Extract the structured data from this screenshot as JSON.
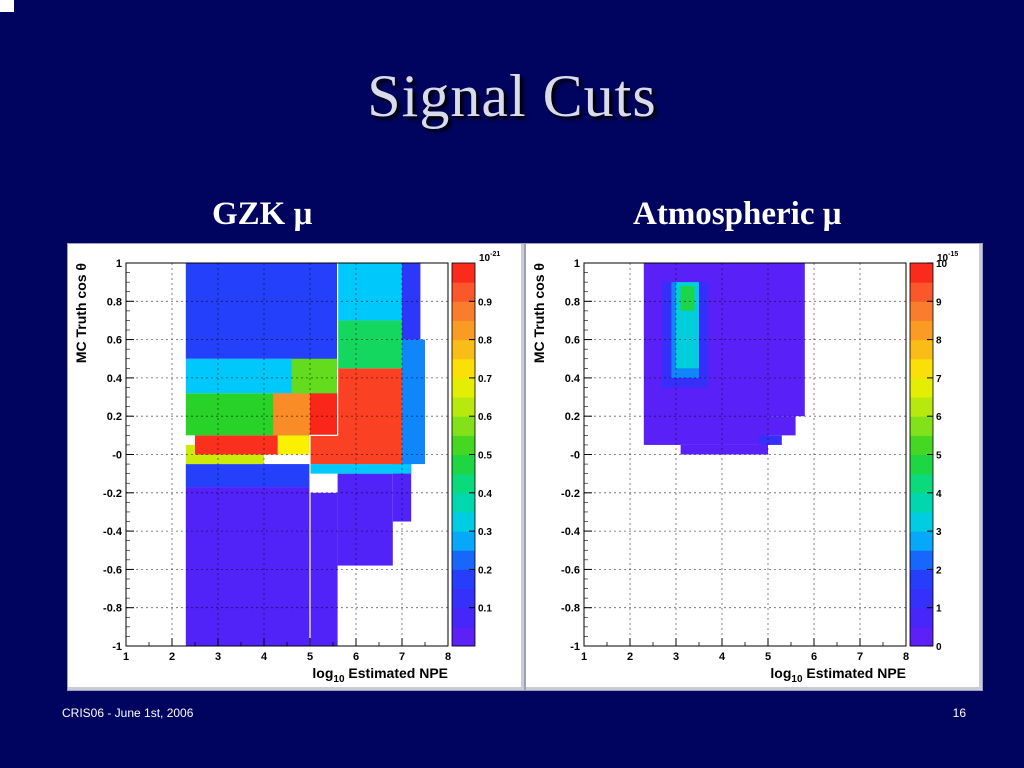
{
  "slide": {
    "title": "Signal Cuts",
    "footer_left": "CRIS06 - June 1st, 2006",
    "footer_right": "16"
  },
  "panels": {
    "left_label": "GZK  μ",
    "right_label": "Atmospheric  μ"
  },
  "chart_data": [
    {
      "type": "heatmap",
      "title": "",
      "xlabel": "log10 Estimated NPE",
      "ylabel": "MC Truth cos θ",
      "xlim": [
        1,
        8
      ],
      "ylim": [
        -1,
        1
      ],
      "x_ticks": [
        "1",
        "2",
        "3",
        "4",
        "5",
        "6",
        "7",
        "8"
      ],
      "y_ticks": [
        "-1",
        "-0.8",
        "-0.6",
        "-0.4",
        "-0.2",
        "-0",
        "0.2",
        "0.4",
        "0.6",
        "0.8",
        "1"
      ],
      "colorbar": {
        "min": 0,
        "max": 1,
        "exponent_label": "10-21",
        "tick_values": [
          0.1,
          0.2,
          0.3,
          0.4,
          0.5,
          0.6,
          0.7,
          0.8,
          0.9
        ],
        "tick_labels": [
          "0.1",
          "0.2",
          "0.3",
          "0.4",
          "0.5",
          "0.6",
          "0.7",
          "0.8",
          "0.9"
        ]
      },
      "cut_lines": [
        {
          "x": [
            5,
            5,
            5.6,
            5.6
          ],
          "y": [
            -1,
            0.1,
            0.1,
            1
          ],
          "color": "#ffffff"
        }
      ],
      "blocks": [
        {
          "x": [
            2.3,
            5.0
          ],
          "y": [
            -1.0,
            -0.17
          ],
          "v": 0.05
        },
        {
          "x": [
            5.0,
            5.6
          ],
          "y": [
            -1.0,
            -0.2
          ],
          "v": 0.05
        },
        {
          "x": [
            5.6,
            6.8
          ],
          "y": [
            -0.58,
            -0.1
          ],
          "v": 0.05
        },
        {
          "x": [
            6.8,
            7.2
          ],
          "y": [
            -0.35,
            -0.05
          ],
          "v": 0.05
        },
        {
          "x": [
            2.3,
            5.0
          ],
          "y": [
            -0.17,
            -0.05
          ],
          "v": 0.18
        },
        {
          "x": [
            5.0,
            7.2
          ],
          "y": [
            -0.1,
            -0.05
          ],
          "v": 0.3
        },
        {
          "x": [
            2.3,
            4.0
          ],
          "y": [
            -0.05,
            0.05
          ],
          "v": 0.65
        },
        {
          "x": [
            2.5,
            4.3
          ],
          "y": [
            0.0,
            0.1
          ],
          "v": 0.97
        },
        {
          "x": [
            4.3,
            5.0
          ],
          "y": [
            0.0,
            0.1
          ],
          "v": 0.7
        },
        {
          "x": [
            5.0,
            7.0
          ],
          "y": [
            -0.05,
            0.45
          ],
          "v": 0.95
        },
        {
          "x": [
            2.3,
            5.0
          ],
          "y": [
            0.1,
            0.32
          ],
          "v": 0.5
        },
        {
          "x": [
            4.2,
            5.0
          ],
          "y": [
            0.1,
            0.32
          ],
          "v": 0.85
        },
        {
          "x": [
            5.0,
            5.6
          ],
          "y": [
            0.1,
            0.4
          ],
          "v": 0.98
        },
        {
          "x": [
            2.3,
            5.6
          ],
          "y": [
            0.32,
            0.5
          ],
          "v": 0.3
        },
        {
          "x": [
            4.6,
            5.6
          ],
          "y": [
            0.32,
            0.55
          ],
          "v": 0.55
        },
        {
          "x": [
            2.3,
            5.6
          ],
          "y": [
            0.5,
            1.0
          ],
          "v": 0.18
        },
        {
          "x": [
            5.6,
            7.0
          ],
          "y": [
            0.45,
            0.7
          ],
          "v": 0.45
        },
        {
          "x": [
            5.6,
            7.0
          ],
          "y": [
            0.7,
            1.0
          ],
          "v": 0.3
        },
        {
          "x": [
            7.0,
            7.5
          ],
          "y": [
            -0.05,
            0.6
          ],
          "v": 0.25
        },
        {
          "x": [
            7.0,
            7.4
          ],
          "y": [
            0.6,
            1.0
          ],
          "v": 0.15
        }
      ]
    },
    {
      "type": "heatmap",
      "title": "",
      "xlabel": "log10 Estimated NPE",
      "ylabel": "MC Truth cos θ",
      "xlim": [
        1,
        8
      ],
      "ylim": [
        -1,
        1
      ],
      "x_ticks": [
        "1",
        "2",
        "3",
        "4",
        "5",
        "6",
        "7",
        "8"
      ],
      "y_ticks": [
        "-1",
        "-0.8",
        "-0.6",
        "-0.4",
        "-0.2",
        "-0",
        "0.2",
        "0.4",
        "0.6",
        "0.8",
        "1"
      ],
      "colorbar": {
        "min": 0,
        "max": 10,
        "exponent_label": "10-15",
        "tick_values": [
          0,
          1,
          2,
          3,
          4,
          5,
          6,
          7,
          8,
          9,
          10
        ],
        "tick_labels": [
          "0",
          "1",
          "2",
          "3",
          "4",
          "5",
          "6",
          "7",
          "8",
          "9",
          "10"
        ]
      },
      "cut_lines": [],
      "blocks": [
        {
          "x": [
            2.3,
            5.0
          ],
          "y": [
            0.05,
            1.0
          ],
          "v": 0.3
        },
        {
          "x": [
            3.1,
            5.0
          ],
          "y": [
            0.0,
            0.05
          ],
          "v": 0.3
        },
        {
          "x": [
            5.0,
            5.8
          ],
          "y": [
            0.2,
            1.0
          ],
          "v": 0.3
        },
        {
          "x": [
            5.0,
            5.6
          ],
          "y": [
            0.1,
            0.2
          ],
          "v": 0.3
        },
        {
          "x": [
            4.8,
            5.3
          ],
          "y": [
            0.05,
            0.1
          ],
          "v": 1.2
        },
        {
          "x": [
            2.7,
            3.7
          ],
          "y": [
            0.35,
            0.9
          ],
          "v": 1.2
        },
        {
          "x": [
            2.9,
            3.5
          ],
          "y": [
            0.4,
            0.9
          ],
          "v": 2.5
        },
        {
          "x": [
            3.0,
            3.5
          ],
          "y": [
            0.45,
            0.9
          ],
          "v": 3.3
        },
        {
          "x": [
            3.1,
            3.4
          ],
          "y": [
            0.75,
            0.88
          ],
          "v": 4.7
        }
      ]
    }
  ]
}
